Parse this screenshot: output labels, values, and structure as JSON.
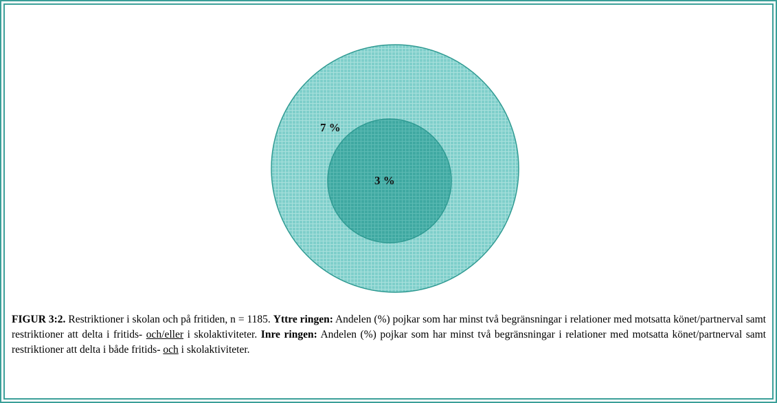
{
  "figure": {
    "outer_label": "7 %",
    "inner_label": "3 %",
    "caption": {
      "figure_number": "FIGUR 3:2.",
      "intro": " Restriktioner i skolan och på fritiden, n  = 1185. ",
      "outer_title": "Yttre ringen:",
      "outer_text_1": " Andelen (%) pojkar som har minst två begränsningar i relationer med motsatta könet/partnerval samt restriktioner att delta i fritids- ",
      "outer_underlined": "och/eller",
      "outer_text_2": " i skolaktiviteter. ",
      "inner_title": "Inre ringen:",
      "inner_text_1": " Andelen (%) pojkar som har minst två begränsningar i relationer med motsatta könet/partnerval samt restriktioner att delta i både fritids- ",
      "inner_underlined": "och",
      "inner_text_2": " i skolaktiviteter."
    }
  }
}
